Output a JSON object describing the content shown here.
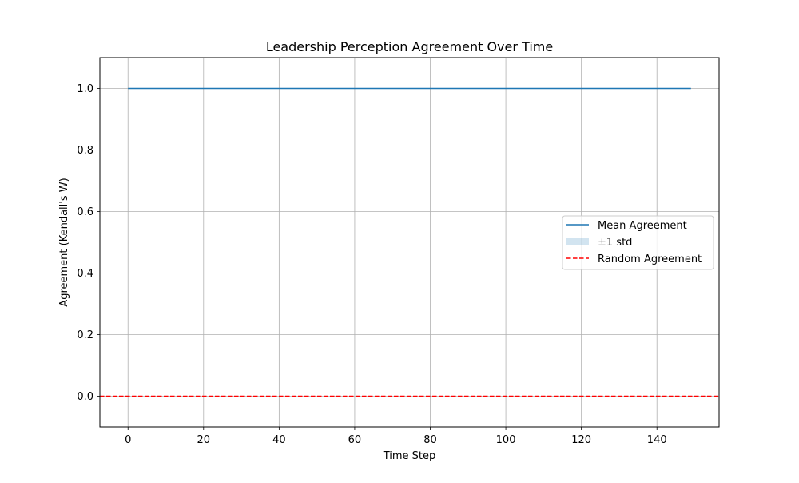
{
  "chart_data": {
    "type": "line",
    "title": "Leadership Perception Agreement Over Time",
    "xlabel": "Time Step",
    "ylabel": "Agreement (Kendall's W)",
    "xlim": [
      -7.45,
      156.45
    ],
    "ylim": [
      -0.1,
      1.1
    ],
    "xticks": [
      0,
      20,
      40,
      60,
      80,
      100,
      120,
      140
    ],
    "yticks": [
      0.0,
      0.2,
      0.4,
      0.6,
      0.8,
      1.0
    ],
    "xtick_labels": [
      "0",
      "20",
      "40",
      "60",
      "80",
      "100",
      "120",
      "140"
    ],
    "ytick_labels": [
      "0.0",
      "0.2",
      "0.4",
      "0.6",
      "0.8",
      "1.0"
    ],
    "grid": true,
    "legend_position": "center-right",
    "series": [
      {
        "name": "Mean Agreement",
        "kind": "line",
        "color": "#1f77b4",
        "x": [
          0,
          149
        ],
        "y": [
          1.0,
          1.0
        ]
      },
      {
        "name": "±1 std",
        "kind": "band",
        "color": "#1f77b4",
        "opacity": 0.2,
        "x": [
          0,
          149
        ],
        "lower": [
          1.0,
          1.0
        ],
        "upper": [
          1.0,
          1.0
        ]
      },
      {
        "name": "Random Agreement",
        "kind": "hline",
        "color": "#ff0000",
        "linestyle": "dashed",
        "y": 0.0
      }
    ]
  }
}
